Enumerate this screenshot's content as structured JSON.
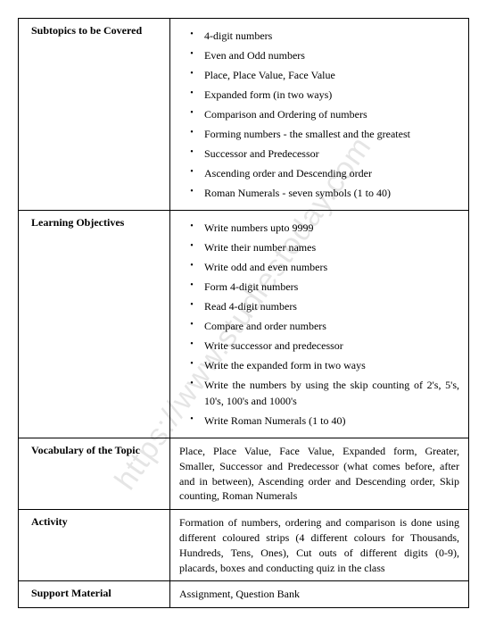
{
  "watermark": "https://www.studiestoday.com",
  "rows": [
    {
      "label": "Subtopics to be Covered",
      "type": "list",
      "items": [
        "4-digit numbers",
        "Even and Odd numbers",
        "Place, Place Value, Face Value",
        "Expanded form (in two ways)",
        "Comparison and Ordering of numbers",
        "Forming numbers - the smallest and the greatest",
        "Successor and Predecessor",
        "Ascending order and Descending order",
        "Roman Numerals - seven symbols (1 to 40)"
      ]
    },
    {
      "label": "Learning Objectives",
      "type": "list",
      "items": [
        "Write numbers upto 9999",
        "Write their number names",
        "Write odd and even numbers",
        "Form 4-digit numbers",
        "Read 4-digit numbers",
        "Compare and order numbers",
        "Write successor and predecessor",
        "Write the expanded form in two ways",
        "Write the numbers by using the skip counting of 2's, 5's, 10's, 100's and 1000's",
        "Write Roman Numerals (1 to 40)"
      ]
    },
    {
      "label": "Vocabulary of the Topic",
      "type": "text",
      "text": "Place, Place Value, Face Value, Expanded form, Greater, Smaller, Successor and Predecessor (what comes before, after and in between), Ascending order and Descending order, Skip counting, Roman Numerals"
    },
    {
      "label": "Activity",
      "type": "text",
      "text": "Formation of numbers, ordering and comparison is done using different coloured strips (4 different colours for Thousands, Hundreds, Tens, Ones), Cut outs of different digits (0-9), placards, boxes and conducting quiz in the class"
    },
    {
      "label": "Support Material",
      "type": "text",
      "text": "Assignment, Question Bank"
    }
  ]
}
